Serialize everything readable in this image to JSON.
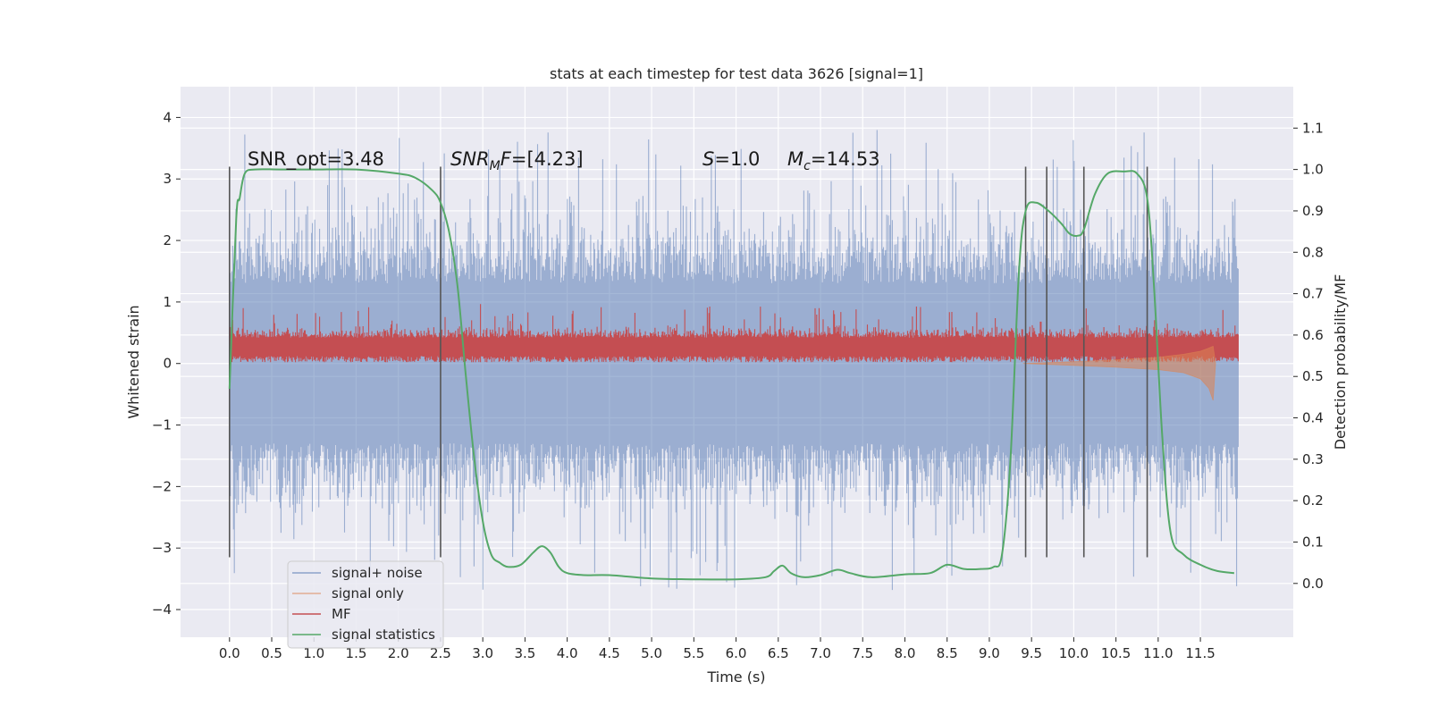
{
  "chart_data": {
    "type": "line",
    "title": "stats at each timestep for test data 3626 [signal=1]",
    "xlabel": "Time (s)",
    "ylabel": "Whitened strain",
    "ylabel_right": "Detection probability/MF",
    "xlim": [
      -0.58,
      12.6
    ],
    "ylim": [
      -4.45,
      4.5
    ],
    "ylim_right": [
      -0.13,
      1.2
    ],
    "x_ticks": [
      "0.0",
      "0.5",
      "1.0",
      "1.5",
      "2.0",
      "2.5",
      "3.0",
      "3.5",
      "4.0",
      "4.5",
      "5.0",
      "5.5",
      "6.0",
      "6.5",
      "7.0",
      "7.5",
      "8.0",
      "8.5",
      "9.0",
      "9.5",
      "10.0",
      "10.5",
      "11.0",
      "11.5"
    ],
    "y_ticks_left": [
      "4",
      "3",
      "2",
      "1",
      "0",
      "−1",
      "−2",
      "−3",
      "−4"
    ],
    "y_ticks_right": [
      "1.1",
      "1.0",
      "0.9",
      "0.8",
      "0.7",
      "0.6",
      "0.5",
      "0.4",
      "0.3",
      "0.2",
      "0.1",
      "0.0"
    ],
    "annotations": {
      "snr_opt": "SNR_opt=3.48",
      "snr_mf": "[4.23]",
      "s_value": "1.0",
      "mc_value": "14.53"
    },
    "vertical_markers": [
      0.0,
      2.5,
      9.43,
      9.68,
      10.12,
      10.87
    ],
    "marker_span": [
      -3.15,
      3.2
    ],
    "legend": {
      "position": "lower-left",
      "items": [
        {
          "label": "signal+ noise",
          "color": "#4c72b0"
        },
        {
          "label": "signal only",
          "color": "#dd8452"
        },
        {
          "label": "MF",
          "color": "#c44e52"
        },
        {
          "label": "signal statistics",
          "color": "#55a868"
        }
      ]
    },
    "series": [
      {
        "name": "signal statistics",
        "axis": "right",
        "color": "#55a868",
        "x": [
          0.0,
          0.08,
          0.12,
          0.18,
          0.3,
          0.6,
          1.0,
          1.5,
          2.0,
          2.2,
          2.4,
          2.5,
          2.6,
          2.7,
          2.8,
          2.9,
          3.0,
          3.1,
          3.2,
          3.3,
          3.45,
          3.6,
          3.7,
          3.8,
          3.9,
          4.0,
          4.2,
          4.5,
          5.0,
          5.5,
          6.0,
          6.35,
          6.45,
          6.55,
          6.65,
          6.8,
          7.0,
          7.2,
          7.35,
          7.6,
          8.0,
          8.3,
          8.5,
          8.7,
          8.9,
          9.05,
          9.15,
          9.25,
          9.35,
          9.43,
          9.55,
          9.7,
          9.85,
          9.95,
          10.05,
          10.12,
          10.25,
          10.4,
          10.6,
          10.75,
          10.87,
          10.95,
          11.05,
          11.15,
          11.3,
          11.5,
          11.7,
          11.9
        ],
        "values": [
          0.47,
          0.88,
          0.93,
          0.99,
          1.0,
          1.0,
          1.0,
          1.0,
          0.99,
          0.98,
          0.95,
          0.92,
          0.85,
          0.72,
          0.5,
          0.3,
          0.15,
          0.07,
          0.05,
          0.04,
          0.045,
          0.075,
          0.09,
          0.075,
          0.04,
          0.025,
          0.02,
          0.02,
          0.012,
          0.01,
          0.01,
          0.015,
          0.03,
          0.043,
          0.025,
          0.015,
          0.02,
          0.033,
          0.025,
          0.015,
          0.022,
          0.025,
          0.045,
          0.035,
          0.035,
          0.04,
          0.07,
          0.3,
          0.75,
          0.9,
          0.92,
          0.9,
          0.87,
          0.845,
          0.84,
          0.855,
          0.94,
          0.99,
          0.995,
          0.99,
          0.93,
          0.72,
          0.35,
          0.12,
          0.07,
          0.045,
          0.03,
          0.025
        ]
      },
      {
        "name": "signal+ noise",
        "axis": "left",
        "color": "#4c72b0",
        "t_start": 0.0,
        "t_end": 11.95,
        "band_ylim": [
          -3.9,
          4.1
        ],
        "description": "dense whitened noise, approx. gaussian, spikes up to 4.1 and down to -3.9"
      },
      {
        "name": "MF",
        "axis": "left",
        "color": "#c44e52",
        "t_start": 0.0,
        "t_end": 11.95,
        "band_ylim": [
          0.02,
          0.97
        ]
      },
      {
        "name": "signal only",
        "axis": "left",
        "color": "#dd8452",
        "x": [
          9.4,
          10.0,
          10.5,
          11.0,
          11.3,
          11.5,
          11.6,
          11.65,
          11.68
        ],
        "upper": [
          0.0,
          0.03,
          0.06,
          0.1,
          0.15,
          0.2,
          0.25,
          0.28,
          0.0
        ],
        "lower": [
          0.0,
          -0.03,
          -0.06,
          -0.1,
          -0.15,
          -0.25,
          -0.4,
          -0.6,
          0.0
        ]
      }
    ]
  }
}
